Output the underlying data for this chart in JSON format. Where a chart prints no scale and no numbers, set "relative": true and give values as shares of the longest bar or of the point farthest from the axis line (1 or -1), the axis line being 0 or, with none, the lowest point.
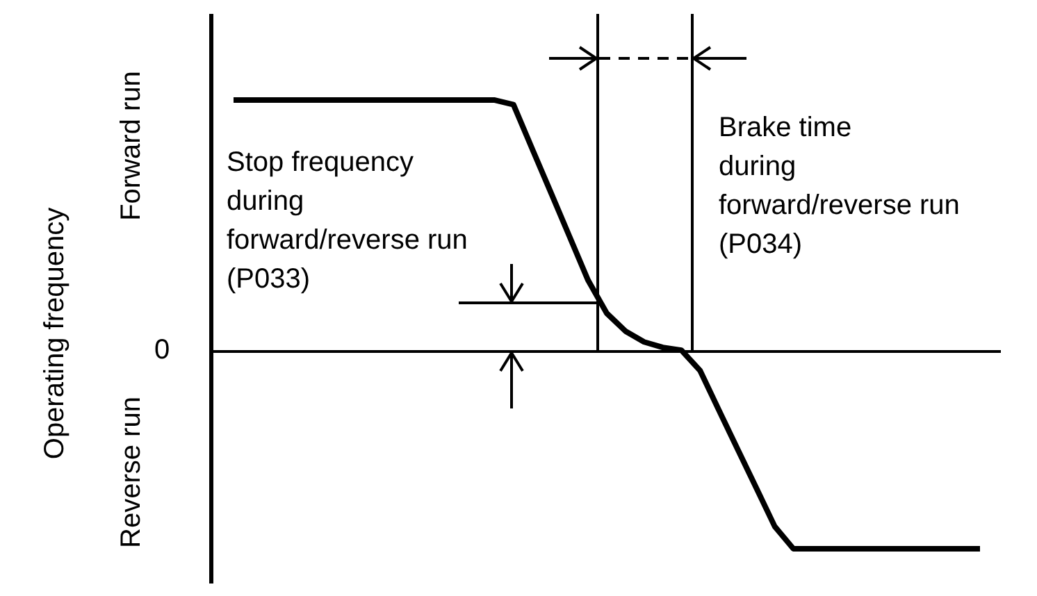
{
  "chart_data": {
    "type": "line",
    "relative": true,
    "categories": [
      null,
      null,
      null,
      null,
      null,
      null,
      null,
      null,
      null,
      null,
      null,
      null,
      null,
      null,
      null,
      null,
      null,
      null,
      null,
      null,
      null,
      null,
      null,
      null,
      null,
      null,
      null,
      null,
      null,
      null,
      null,
      null,
      null,
      null,
      null,
      null,
      null,
      null,
      null,
      null,
      null
    ],
    "series": [
      {
        "color": "#000000",
        "values": [
          1,
          1,
          1,
          1,
          1,
          1,
          1,
          1,
          1,
          1,
          1,
          1,
          1,
          1,
          1,
          0.982,
          0.807,
          0.633,
          0.458,
          0.283,
          0.152,
          0.081,
          0.038,
          0.016,
          0.005,
          -0.076,
          -0.232,
          -0.387,
          -0.541,
          -0.696,
          -0.785,
          -0.785,
          -0.785,
          -0.785,
          -0.785,
          -0.785,
          -0.785,
          -0.785,
          -0.785,
          -0.785,
          -0.785
        ]
      }
    ],
    "annotations": [
      "Operating frequency",
      "0",
      "Forward run",
      "Reverse run",
      "Stop frequency\nduring\nforward/reverse run\n(P033)",
      "Brake time\nduring\nforward/reverse run\n(P034)"
    ]
  }
}
